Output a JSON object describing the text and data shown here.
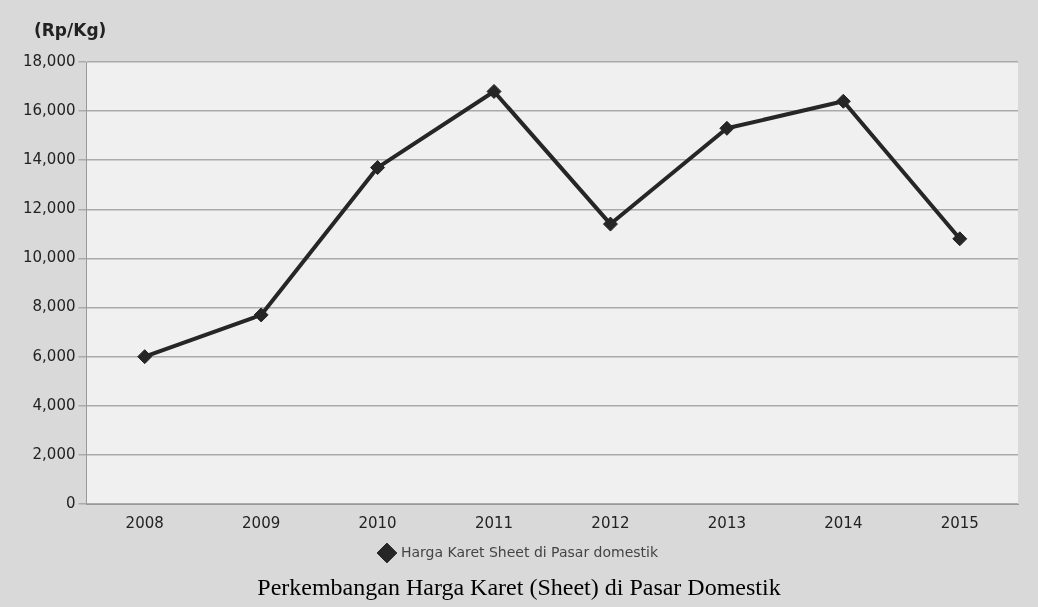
{
  "chart_data": {
    "type": "line",
    "ylabel": "(Rp/Kg)",
    "categories": [
      "2008",
      "2009",
      "2010",
      "2011",
      "2012",
      "2013",
      "2014",
      "2015"
    ],
    "series": [
      {
        "name": "Harga Karet Sheet di Pasar domestik",
        "color": "#262626",
        "values": [
          6000,
          7700,
          13700,
          16800,
          11400,
          15300,
          16400,
          10800
        ]
      }
    ],
    "ylim": [
      0,
      18000
    ],
    "yticks": [
      {
        "value": 0,
        "label": "0"
      },
      {
        "value": 2000,
        "label": "2,000"
      },
      {
        "value": 4000,
        "label": "4,000"
      },
      {
        "value": 6000,
        "label": "6,000"
      },
      {
        "value": 8000,
        "label": "8,000"
      },
      {
        "value": 10000,
        "label": "10,000"
      },
      {
        "value": 12000,
        "label": "12,000"
      },
      {
        "value": 14000,
        "label": "14,000"
      },
      {
        "value": 16000,
        "label": "16,000"
      },
      {
        "value": 18000,
        "label": "18,000"
      }
    ],
    "grid": "y",
    "legend": "bottom",
    "marker": "diamond",
    "line_style": "solid",
    "annotations": [
      "Perkembangan Harga Karet (Sheet) di Pasar Domestik"
    ]
  }
}
